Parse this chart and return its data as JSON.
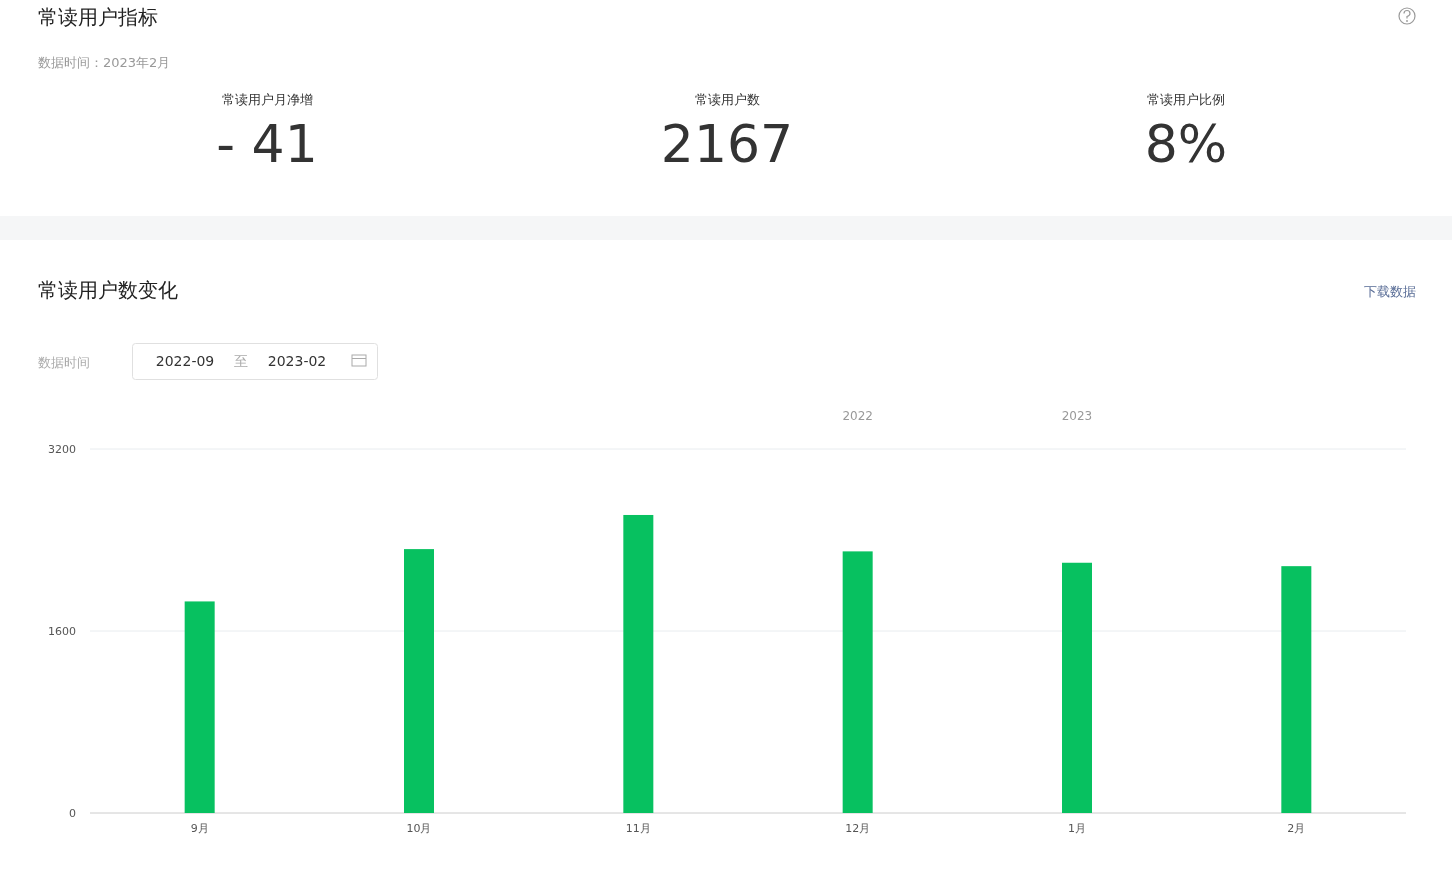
{
  "chart_data": [
    {
      "type": "other",
      "title": "常读用户指标",
      "subtitle": "数据时间：2023年2月",
      "categories": [
        "常读用户月净增",
        "常读用户数",
        "常读用户比例"
      ],
      "value_labels": [
        "- 41",
        "2167",
        "8%"
      ]
    },
    {
      "type": "bar",
      "title": "常读用户数变化",
      "categories": [
        "9月",
        "10月",
        "11月",
        "12月",
        "1月",
        "2月"
      ],
      "values": [
        1860,
        2320,
        2620,
        2300,
        2200,
        2170
      ],
      "color": "#07c160",
      "ylim": [
        0,
        3200
      ],
      "yticks": [
        0,
        1600,
        3200
      ],
      "grid": "y",
      "annotations": [
        "下载数据",
        "数据时间",
        "2022-09",
        "至",
        "2023-02",
        "2022",
        "2023"
      ]
    }
  ]
}
